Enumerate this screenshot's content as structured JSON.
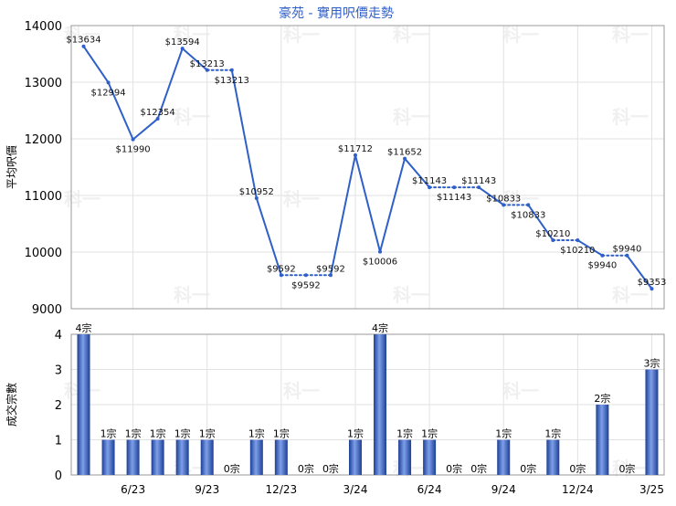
{
  "chart_data": [
    {
      "type": "line",
      "title": "豪苑 - 實用呎價走勢",
      "ylabel": "平均呎價",
      "ylim": [
        9000,
        14000
      ],
      "yticks": [
        "9000",
        "10000",
        "11000",
        "12000",
        "13000",
        "14000"
      ],
      "grid": true,
      "line_color": "#2f5fc8",
      "points": [
        {
          "label": "$13634",
          "value": 13634,
          "dotted_to_next": false
        },
        {
          "label": "$12994",
          "value": 12994,
          "dotted_to_next": false
        },
        {
          "label": "$11990",
          "value": 11990,
          "dotted_to_next": false
        },
        {
          "label": "$12354",
          "value": 12354,
          "dotted_to_next": false
        },
        {
          "label": "$13594",
          "value": 13594,
          "dotted_to_next": false
        },
        {
          "label": "$13213",
          "value": 13213,
          "dotted_to_next": true
        },
        {
          "label": "$13213",
          "value": 13213,
          "dotted_to_next": false
        },
        {
          "label": "$10952",
          "value": 10952,
          "dotted_to_next": false
        },
        {
          "label": "$9592",
          "value": 9592,
          "dotted_to_next": true
        },
        {
          "label": "$9592",
          "value": 9592,
          "dotted_to_next": true
        },
        {
          "label": "$9592",
          "value": 9592,
          "dotted_to_next": false
        },
        {
          "label": "$11712",
          "value": 11712,
          "dotted_to_next": false
        },
        {
          "label": "$10006",
          "value": 10006,
          "dotted_to_next": false
        },
        {
          "label": "$11652",
          "value": 11652,
          "dotted_to_next": false
        },
        {
          "label": "$11143",
          "value": 11143,
          "dotted_to_next": true
        },
        {
          "label": "$11143",
          "value": 11143,
          "dotted_to_next": true
        },
        {
          "label": "$11143",
          "value": 11143,
          "dotted_to_next": false
        },
        {
          "label": "$10833",
          "value": 10833,
          "dotted_to_next": true
        },
        {
          "label": "$10833",
          "value": 10833,
          "dotted_to_next": false
        },
        {
          "label": "$10210",
          "value": 10210,
          "dotted_to_next": true
        },
        {
          "label": "$10210",
          "value": 10210,
          "dotted_to_next": false
        },
        {
          "label": "$9940",
          "value": 9940,
          "dotted_to_next": true
        },
        {
          "label": "$9940",
          "value": 9940,
          "dotted_to_next": false
        },
        {
          "label": "$9353",
          "value": 9353,
          "dotted_to_next": false
        }
      ]
    },
    {
      "type": "bar",
      "ylabel": "成交宗數",
      "ylim": [
        0,
        4
      ],
      "yticks": [
        "0",
        "1",
        "2",
        "3",
        "4"
      ],
      "grid": true,
      "bar_color": "#3a63c4",
      "unit_suffix": "宗",
      "categories": [
        "",
        "",
        "6/23",
        "",
        "",
        "9/23",
        "",
        "",
        "12/23",
        "",
        "",
        "3/24",
        "",
        "",
        "6/24",
        "",
        "",
        "9/24",
        "",
        "",
        "12/24",
        "",
        "",
        "3/25"
      ],
      "values": [
        4,
        1,
        1,
        1,
        1,
        1,
        0,
        1,
        1,
        0,
        0,
        1,
        4,
        1,
        1,
        0,
        0,
        1,
        0,
        1,
        0,
        2,
        0,
        3
      ]
    }
  ],
  "watermark": "科一"
}
